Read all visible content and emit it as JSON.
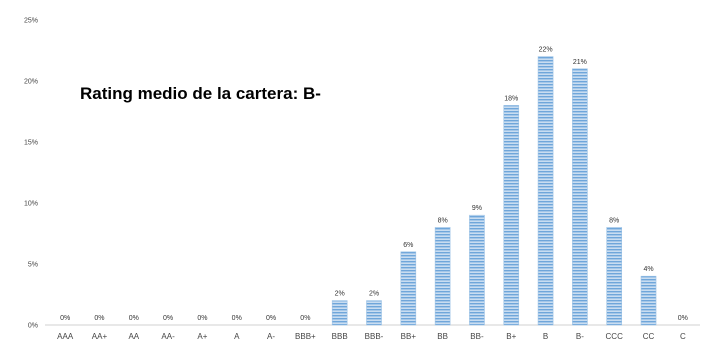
{
  "chart_data": {
    "type": "bar",
    "annotation": "Rating medio de la cartera: B-",
    "categories": [
      "AAA",
      "AA+",
      "AA",
      "AA-",
      "A+",
      "A",
      "A-",
      "BBB+",
      "BBB",
      "BBB-",
      "BB+",
      "BB",
      "BB-",
      "B+",
      "B",
      "B-",
      "CCC",
      "CC",
      "C"
    ],
    "values": [
      0,
      0,
      0,
      0,
      0,
      0,
      0,
      0,
      2,
      2,
      6,
      8,
      9,
      18,
      22,
      21,
      8,
      4,
      0
    ],
    "data_labels": [
      "0%",
      "0%",
      "0%",
      "0%",
      "0%",
      "0%",
      "0%",
      "0%",
      "2%",
      "2%",
      "6%",
      "8%",
      "9%",
      "18%",
      "22%",
      "21%",
      "8%",
      "4%",
      "0%"
    ],
    "y_ticks": [
      {
        "value": 0,
        "label": "0%"
      },
      {
        "value": 5,
        "label": "5%"
      },
      {
        "value": 10,
        "label": "10%"
      },
      {
        "value": 15,
        "label": "15%"
      },
      {
        "value": 20,
        "label": "20%"
      },
      {
        "value": 25,
        "label": "25%"
      }
    ],
    "ylim": [
      0,
      25
    ],
    "grid": false,
    "legend": "none",
    "bar_color": "#9dc3e6",
    "bar_stripe_color": "#5b9bd5",
    "title": "",
    "xlabel": "",
    "ylabel": ""
  }
}
